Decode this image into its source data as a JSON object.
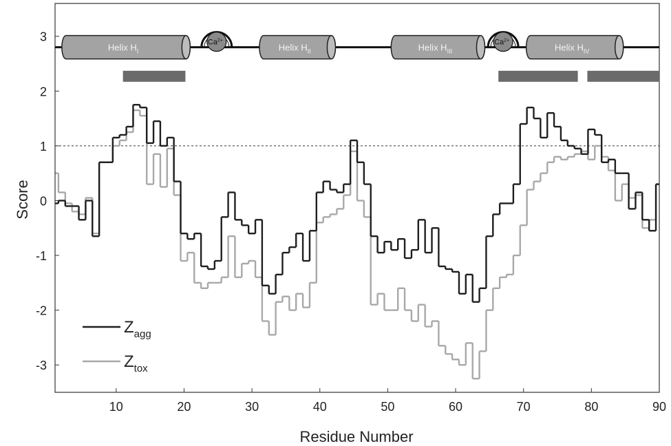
{
  "chart_data": {
    "type": "step",
    "xlabel": "Residue Number",
    "ylabel": "Score",
    "x": [
      1,
      2,
      3,
      4,
      5,
      6,
      7,
      8,
      9,
      10,
      11,
      12,
      13,
      14,
      15,
      16,
      17,
      18,
      19,
      20,
      21,
      22,
      23,
      24,
      25,
      26,
      27,
      28,
      29,
      30,
      31,
      32,
      33,
      34,
      35,
      36,
      37,
      38,
      39,
      40,
      41,
      42,
      43,
      44,
      45,
      46,
      47,
      48,
      49,
      50,
      51,
      52,
      53,
      54,
      55,
      56,
      57,
      58,
      59,
      60,
      61,
      62,
      63,
      64,
      65,
      66,
      67,
      68,
      69,
      70,
      71,
      72,
      73,
      74,
      75,
      76,
      77,
      78,
      79,
      80,
      81,
      82,
      83,
      84,
      85,
      86,
      87,
      88,
      89,
      90
    ],
    "series": [
      {
        "name": "Z",
        "subscript": "tox",
        "color": "#a8a8a8",
        "values": [
          0.5,
          0.15,
          -0.05,
          -0.2,
          -0.25,
          0.05,
          -0.6,
          0.7,
          0.7,
          1.0,
          1.1,
          1.25,
          1.65,
          1.55,
          0.3,
          0.85,
          0.25,
          0.95,
          0.1,
          -1.1,
          -0.95,
          -1.5,
          -1.6,
          -1.5,
          -1.5,
          -1.4,
          -0.65,
          -1.4,
          -1.15,
          -1.1,
          -1.4,
          -2.2,
          -2.45,
          -1.85,
          -1.75,
          -2.0,
          -1.7,
          -1.95,
          -1.5,
          -0.4,
          -0.3,
          -0.25,
          -0.15,
          0.1,
          0.9,
          0.0,
          -0.3,
          -1.9,
          -1.7,
          -2.0,
          -2.0,
          -1.6,
          -2.0,
          -2.2,
          -1.9,
          -2.3,
          -2.2,
          -2.65,
          -2.8,
          -2.9,
          -3.0,
          -2.6,
          -3.25,
          -2.75,
          -2.0,
          -1.6,
          -1.4,
          -1.35,
          -1.0,
          -0.45,
          0.2,
          0.35,
          0.5,
          0.7,
          0.8,
          0.75,
          0.8,
          0.85,
          0.9,
          0.75,
          1.0,
          0.8,
          0.55,
          0.0,
          0.3,
          0.05,
          0.1,
          -0.5,
          -0.35,
          0.3
        ]
      },
      {
        "name": "Z",
        "subscript": "agg",
        "color": "#1e1e1e",
        "values": [
          -0.05,
          0.0,
          -0.1,
          -0.1,
          -0.35,
          0.0,
          -0.65,
          0.7,
          0.7,
          1.15,
          1.2,
          1.35,
          1.75,
          1.7,
          1.05,
          1.45,
          1.0,
          1.15,
          0.35,
          -0.6,
          -0.7,
          -0.6,
          -1.2,
          -1.25,
          -1.1,
          -0.3,
          0.15,
          -0.35,
          -0.45,
          -0.6,
          -0.35,
          -1.55,
          -1.7,
          -1.35,
          -0.95,
          -0.85,
          -0.6,
          -1.1,
          -0.55,
          0.15,
          0.35,
          0.2,
          0.15,
          0.3,
          1.1,
          0.7,
          0.3,
          -0.65,
          -0.95,
          -0.75,
          -0.9,
          -0.7,
          -1.05,
          -0.9,
          -0.35,
          -0.95,
          -0.5,
          -1.2,
          -1.25,
          -1.3,
          -1.7,
          -1.35,
          -1.85,
          -1.6,
          -0.65,
          -0.25,
          -0.05,
          -0.05,
          0.3,
          1.4,
          1.7,
          1.5,
          1.15,
          1.6,
          1.35,
          1.1,
          1.0,
          0.95,
          0.85,
          1.3,
          1.2,
          0.7,
          0.75,
          0.5,
          0.5,
          -0.15,
          0.15,
          -0.35,
          -0.55,
          0.3
        ]
      }
    ],
    "xlim": [
      1,
      90
    ],
    "xticks": [
      10,
      20,
      30,
      40,
      50,
      60,
      70,
      80,
      90
    ],
    "ylim": [
      -3.5,
      3.6
    ],
    "yticks": [
      -3,
      -2,
      -1,
      0,
      1,
      2,
      3
    ],
    "reference_line": 1,
    "track_y": 2.8,
    "helices": [
      {
        "label": "Helix H",
        "sub": "I",
        "start": 2.0,
        "end": 20.9
      },
      {
        "label": "Helix H",
        "sub": "II",
        "start": 31.1,
        "end": 42.3
      },
      {
        "label": "Helix H",
        "sub": "III",
        "start": 50.5,
        "end": 64.3
      },
      {
        "label": "Helix H",
        "sub": "IV",
        "start": 70.4,
        "end": 84.7
      }
    ],
    "calcium_sites": [
      {
        "label": "Ca",
        "sup": "2+",
        "x": 24.8
      },
      {
        "label": "Ca",
        "sup": "2+",
        "x": 67.0
      }
    ],
    "regions_y": 2.27,
    "regions": [
      [
        11.0,
        20.2
      ],
      [
        66.3,
        78.0
      ],
      [
        79.4,
        90.0
      ]
    ],
    "region_color": "#6b6b6b"
  }
}
